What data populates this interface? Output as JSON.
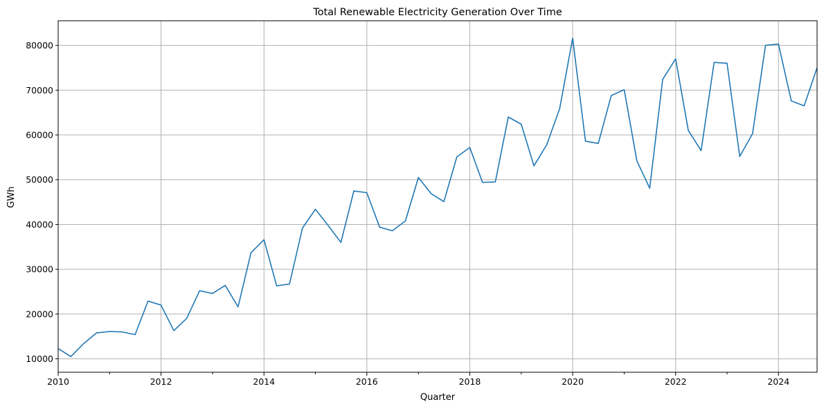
{
  "chart_data": {
    "type": "line",
    "title": "Total Renewable Electricity Generation Over Time",
    "xlabel": "Quarter",
    "ylabel": "GWh",
    "xlim": [
      "2010-01-01",
      "2024-10-01"
    ],
    "ylim": [
      7000,
      85500
    ],
    "x_ticks": [
      "2010",
      "2012",
      "2014",
      "2016",
      "2018",
      "2020",
      "2022",
      "2024"
    ],
    "y_ticks": [
      "10000",
      "20000",
      "30000",
      "40000",
      "50000",
      "60000",
      "70000",
      "80000"
    ],
    "grid": true,
    "colors": {
      "line": "#1f77b4",
      "grid": "#b0b0b0",
      "axis": "#000000"
    },
    "series": [
      {
        "x": [
          "2010-01-01",
          "2010-04-01",
          "2010-07-01",
          "2010-10-01",
          "2011-01-01",
          "2011-04-01",
          "2011-07-01",
          "2011-10-01",
          "2012-01-01",
          "2012-04-01",
          "2012-07-01",
          "2012-10-01",
          "2013-01-01",
          "2013-04-01",
          "2013-07-01",
          "2013-10-01",
          "2014-01-01",
          "2014-04-01",
          "2014-07-01",
          "2014-10-01",
          "2015-01-01",
          "2015-04-01",
          "2015-07-01",
          "2015-10-01",
          "2016-01-01",
          "2016-04-01",
          "2016-07-01",
          "2016-10-01",
          "2017-01-01",
          "2017-04-01",
          "2017-07-01",
          "2017-10-01",
          "2018-01-01",
          "2018-04-01",
          "2018-07-01",
          "2018-10-01",
          "2019-01-01",
          "2019-04-01",
          "2019-07-01",
          "2019-10-01",
          "2020-01-01",
          "2020-04-01",
          "2020-07-01",
          "2020-10-01",
          "2021-01-01",
          "2021-04-01",
          "2021-07-01",
          "2021-10-01",
          "2022-01-01",
          "2022-04-01",
          "2022-07-01",
          "2022-10-01",
          "2023-01-01",
          "2023-04-01",
          "2023-07-01",
          "2023-10-01",
          "2024-01-01",
          "2024-04-01",
          "2024-07-01",
          "2024-10-01"
        ],
        "values": [
          12300,
          10500,
          13400,
          15800,
          16100,
          16000,
          15400,
          22900,
          22000,
          16300,
          19000,
          25200,
          24600,
          26400,
          21600,
          33700,
          36600,
          26300,
          26700,
          39200,
          43400,
          39800,
          36000,
          47500,
          47100,
          39400,
          38600,
          40800,
          50500,
          46900,
          45100,
          55100,
          57200,
          49400,
          49500,
          64000,
          62400,
          53100,
          57800,
          65900,
          81600,
          58600,
          58100,
          68800,
          70100,
          54200,
          48100,
          72400,
          77000,
          61000,
          56500,
          76200,
          76000,
          55200,
          60300,
          80000,
          80300,
          67600,
          66500,
          75000
        ]
      }
    ]
  }
}
